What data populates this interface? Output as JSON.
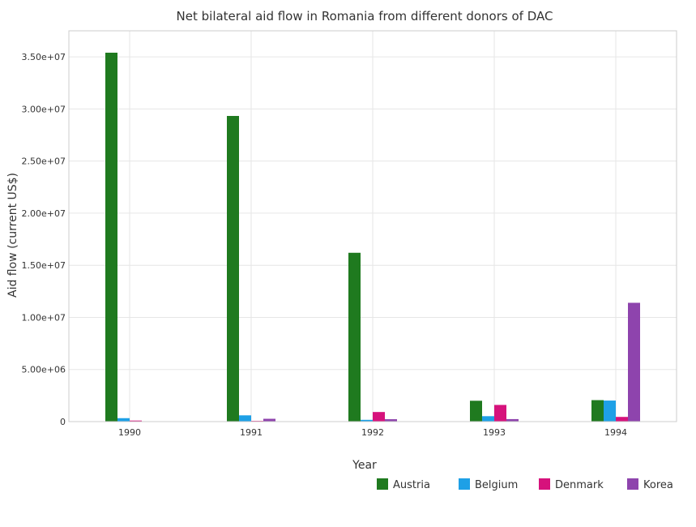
{
  "chart_data": {
    "type": "bar",
    "title": "Net bilateral aid flow in Romania from different donors of DAC",
    "xlabel": "Year",
    "ylabel": "Aid flow (current US$)",
    "categories": [
      "1990",
      "1991",
      "1992",
      "1993",
      "1994"
    ],
    "ylim": [
      0,
      37500000
    ],
    "yticks": [
      0,
      5000000,
      10000000,
      15000000,
      20000000,
      25000000,
      30000000,
      35000000
    ],
    "ytick_labels": [
      "0",
      "5.00e+06",
      "1.00e+07",
      "1.50e+07",
      "2.00e+07",
      "2.50e+07",
      "3.00e+07",
      "3.50e+07"
    ],
    "grid": true,
    "legend_position": "bottom-right",
    "series": [
      {
        "name": "Austria",
        "color": "#1f7a1f",
        "values": [
          35400000,
          29330000,
          16200000,
          2000000,
          2060000
        ]
      },
      {
        "name": "Belgium",
        "color": "#1ea0e6",
        "values": [
          330000,
          600000,
          170000,
          520000,
          2020000
        ]
      },
      {
        "name": "Denmark",
        "color": "#d6127c",
        "values": [
          100000,
          70000,
          920000,
          1600000,
          450000
        ]
      },
      {
        "name": "Korea",
        "color": "#8e44ad",
        "values": [
          30000,
          270000,
          230000,
          240000,
          11400000
        ]
      }
    ]
  }
}
